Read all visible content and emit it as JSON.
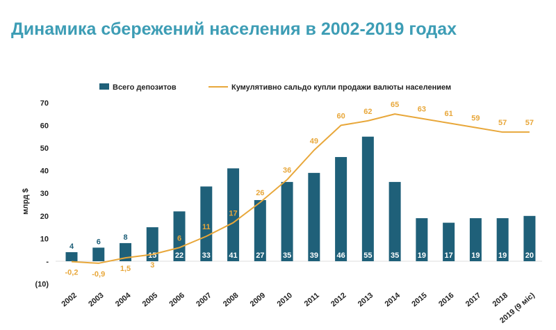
{
  "chart_data": {
    "type": "bar+line",
    "title": "Динамика сбережений населения в 2002-2019 годах",
    "ylabel": "млрд $",
    "ylim": [
      -10,
      70
    ],
    "yticks": [
      {
        "v": 70,
        "label": "70"
      },
      {
        "v": 60,
        "label": "60"
      },
      {
        "v": 50,
        "label": "50"
      },
      {
        "v": 40,
        "label": "40"
      },
      {
        "v": 30,
        "label": "30"
      },
      {
        "v": 20,
        "label": "20"
      },
      {
        "v": 10,
        "label": "10"
      },
      {
        "v": 0,
        "label": "-"
      },
      {
        "v": -10,
        "label": "(10)"
      }
    ],
    "legend_position": "top",
    "categories": [
      "2002",
      "2003",
      "2004",
      "2005",
      "2006",
      "2007",
      "2008",
      "2009",
      "2010",
      "2011",
      "2012",
      "2013",
      "2014",
      "2015",
      "2016",
      "2017",
      "2018",
      "2019 (9 міс)"
    ],
    "series": [
      {
        "name": "Всего депозитов",
        "type": "bar",
        "color": "#1f6079",
        "values": [
          4,
          6,
          8,
          15,
          22,
          33,
          41,
          27,
          35,
          39,
          46,
          55,
          35,
          19,
          17,
          19,
          19,
          20
        ],
        "labels": [
          "4",
          "6",
          "8",
          "15",
          "22",
          "33",
          "41",
          "27",
          "35",
          "39",
          "46",
          "55",
          "35",
          "19",
          "17",
          "19",
          "19",
          "20"
        ]
      },
      {
        "name": "Кумулятивно сальдо купли продажи валюты населением",
        "type": "line",
        "color": "#e8a73a",
        "values": [
          -0.2,
          -0.9,
          1.5,
          3,
          6,
          11,
          17,
          26,
          36,
          49,
          60,
          62,
          65,
          63,
          61,
          59,
          57,
          57
        ],
        "labels": [
          "-0,2",
          "-0,9",
          "1,5",
          "3",
          "6",
          "11",
          "17",
          "26",
          "36",
          "49",
          "60",
          "62",
          "65",
          "63",
          "61",
          "59",
          "57",
          "57"
        ]
      }
    ]
  }
}
